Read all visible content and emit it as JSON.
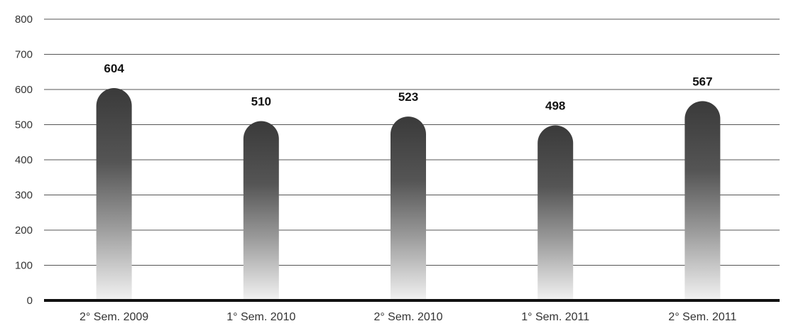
{
  "chart_data": {
    "type": "bar",
    "categories": [
      "2° Sem. 2009",
      "1° Sem. 2010",
      "2° Sem. 2010",
      "1° Sem. 2011",
      "2° Sem. 2011"
    ],
    "values": [
      604,
      510,
      523,
      498,
      567
    ],
    "data_labels": [
      "604",
      "510",
      "523",
      "498",
      "567"
    ],
    "ylim": [
      0,
      800
    ],
    "yticks": [
      0,
      100,
      200,
      300,
      400,
      500,
      600,
      700,
      800
    ],
    "ytick_labels": [
      "0",
      "100",
      "200",
      "300",
      "400",
      "500",
      "600",
      "700",
      "800"
    ],
    "grid": true,
    "bar_color": "#3a3a3a",
    "title": "",
    "xlabel": "",
    "ylabel": ""
  }
}
